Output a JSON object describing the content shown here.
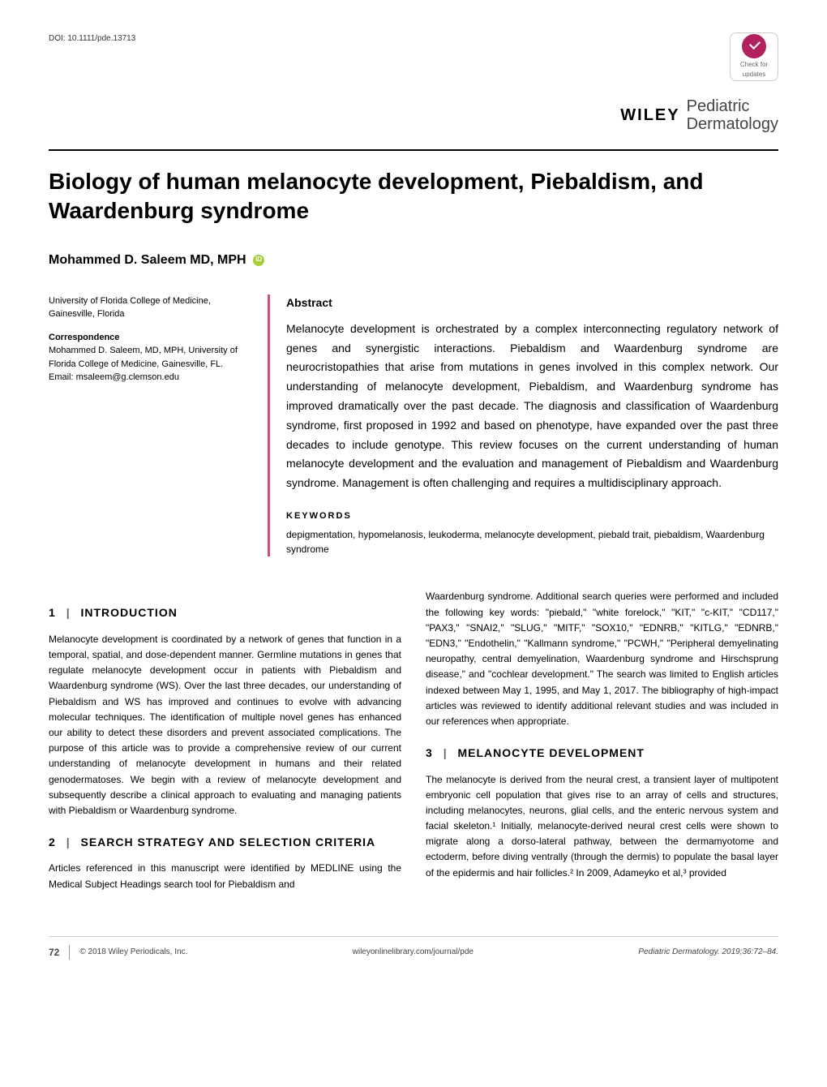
{
  "doi": "DOI: 10.1111/pde.13713",
  "check_badge": {
    "line1": "Check for",
    "line2": "updates"
  },
  "journal": {
    "publisher": "WILEY",
    "name_line1": "Pediatric",
    "name_line2": "Dermatology"
  },
  "article": {
    "title": "Biology of human melanocyte development, Piebaldism, and Waardenburg syndrome",
    "author": "Mohammed D. Saleem MD, MPH"
  },
  "author_meta": {
    "affiliation": "University of Florida College of Medicine, Gainesville, Florida",
    "correspondence_label": "Correspondence",
    "correspondence_text": "Mohammed D. Saleem, MD, MPH, University of Florida College of Medicine, Gainesville, FL.",
    "email_label": "Email: msaleem@g.clemson.edu"
  },
  "abstract": {
    "heading": "Abstract",
    "text": "Melanocyte development is orchestrated by a complex interconnecting regulatory network of genes and synergistic interactions. Piebaldism and Waardenburg syndrome are neurocristopathies that arise from mutations in genes involved in this complex network. Our understanding of melanocyte development, Piebaldism, and Waardenburg syndrome has improved dramatically over the past decade. The diagnosis and classification of Waardenburg syndrome, first proposed in 1992 and based on phenotype, have expanded over the past three decades to include genotype. This review focuses on the current understanding of human melanocyte development and the evaluation and management of Piebaldism and Waardenburg syndrome. Management is often challenging and requires a multidisciplinary approach.",
    "keywords_heading": "KEYWORDS",
    "keywords": "depigmentation, hypomelanosis, leukoderma, melanocyte development, piebald trait, piebaldism, Waardenburg syndrome"
  },
  "sections": {
    "s1": {
      "num": "1",
      "title": "INTRODUCTION",
      "p1": "Melanocyte development is coordinated by a network of genes that function in a temporal, spatial, and dose-dependent manner. Germline mutations in genes that regulate melanocyte development occur in patients with Piebaldism and Waardenburg syndrome (WS). Over the last three decades, our understanding of Piebaldism and WS has improved and continues to evolve with advancing molecular techniques. The identification of multiple novel genes has enhanced our ability to detect these disorders and prevent associated complications. The purpose of this article was to provide a comprehensive review of our current understanding of melanocyte development in humans and their related genodermatoses. We begin with a review of melanocyte development and subsequently describe a clinical approach to evaluating and managing patients with Piebaldism or Waardenburg syndrome."
    },
    "s2": {
      "num": "2",
      "title": "SEARCH STRATEGY AND SELECTION CRITERIA",
      "p1": "Articles referenced in this manuscript were identified by MEDLINE using the Medical Subject Headings search tool for Piebaldism and",
      "p2": "Waardenburg syndrome. Additional search queries were performed and included the following key words: \"piebald,\" \"white forelock,\" \"KIT,\" \"c-KIT,\" \"CD117,\" \"PAX3,\" \"SNAI2,\" \"SLUG,\" \"MITF,\" \"SOX10,\" \"EDNRB,\" \"KITLG,\" \"EDNRB,\" \"EDN3,\" \"Endothelin,\" \"Kallmann syndrome,\" \"PCWH,\" \"Peripheral demyelinating neuropathy, central demyelination, Waardenburg syndrome and Hirschsprung disease,\" and \"cochlear development.\" The search was limited to English articles indexed between May 1, 1995, and May 1, 2017. The bibliography of high-impact articles was reviewed to identify additional relevant studies and was included in our references when appropriate."
    },
    "s3": {
      "num": "3",
      "title": "MELANOCYTE DEVELOPMENT",
      "p1": "The melanocyte is derived from the neural crest, a transient layer of multipotent embryonic cell population that gives rise to an array of cells and structures, including melanocytes, neurons, glial cells, and the enteric nervous system and facial skeleton.¹ Initially, melanocyte-derived neural crest cells were shown to migrate along a dorso-lateral pathway, between the dermamyotome and ectoderm, before diving ventrally (through the dermis) to populate the basal layer of the epidermis and hair follicles.² In 2009, Adameyko et al,³ provided"
    }
  },
  "footer": {
    "page": "72",
    "copyright": "© 2018 Wiley Periodicals, Inc.",
    "url": "wileyonlinelibrary.com/journal/pde",
    "citation": "Pediatric Dermatology. 2019;36:72–84."
  },
  "colors": {
    "accent": "#c94f7c",
    "orcid": "#a6ce39",
    "text": "#000000",
    "background": "#ffffff"
  }
}
